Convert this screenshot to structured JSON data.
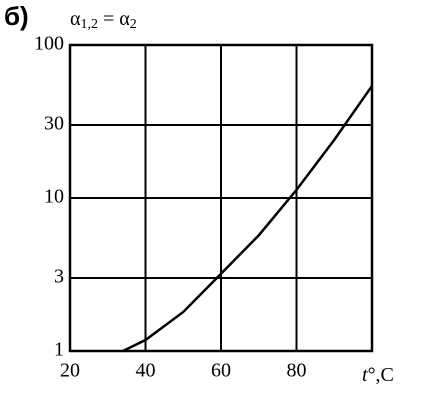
{
  "chart_data": {
    "type": "line",
    "panel_label": "б)",
    "title": [
      "α",
      "1,2",
      " = α",
      "2"
    ],
    "x_label": [
      "t",
      "°,C"
    ],
    "x": [
      34,
      40,
      50,
      60,
      70,
      80,
      90,
      100
    ],
    "series": [
      {
        "color": "#000000",
        "values": [
          1,
          1.18,
          1.8,
          3.2,
          5.7,
          11.3,
          24,
          54
        ]
      }
    ],
    "xlim": [
      20,
      100
    ],
    "xticks": [
      20,
      40,
      60,
      80
    ],
    "ylim": [
      1,
      100
    ],
    "yticks": [
      1,
      3,
      10,
      30,
      100
    ],
    "y_scale": "log",
    "grid": true
  }
}
